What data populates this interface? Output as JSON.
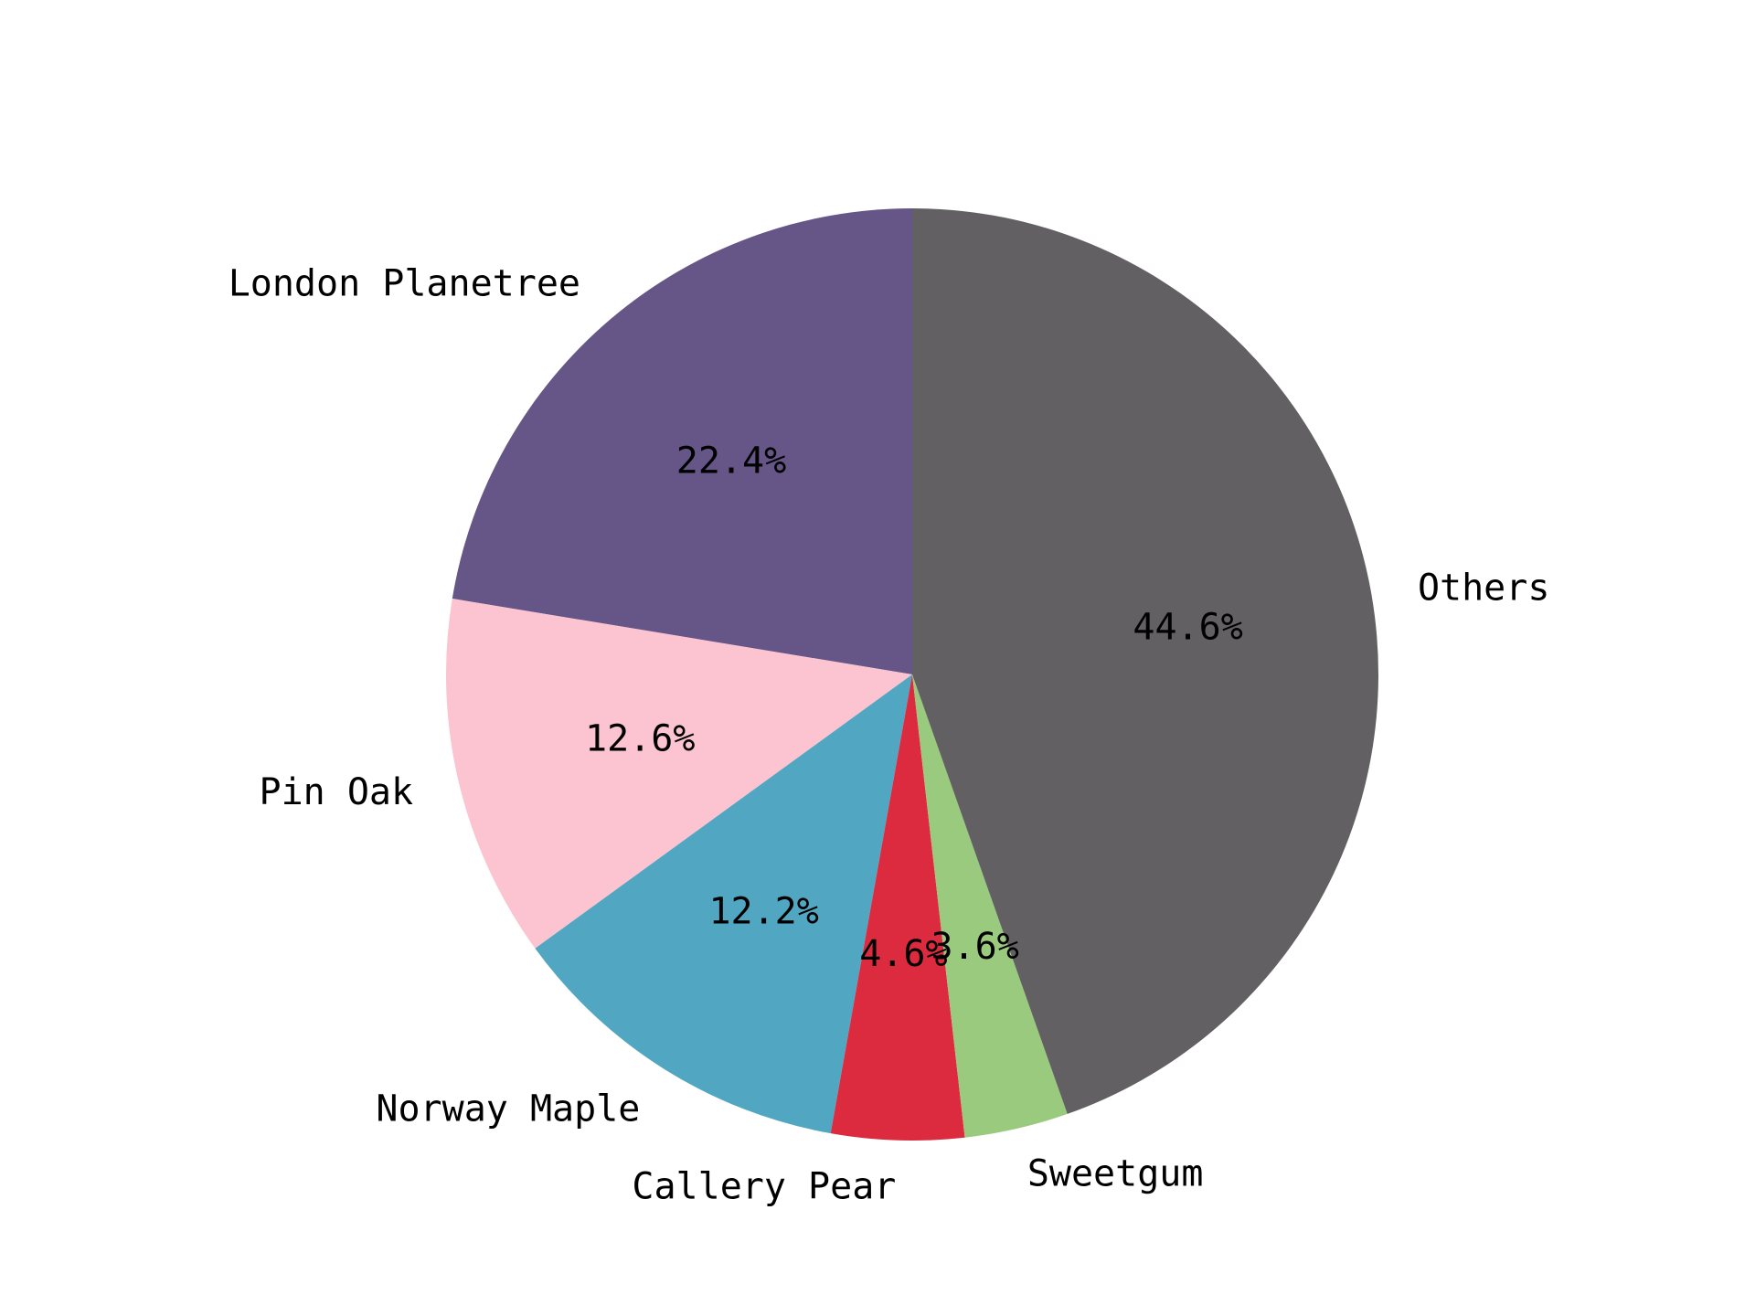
{
  "chart_data": {
    "type": "pie",
    "title": "",
    "start_angle_deg": 90,
    "direction": "counterclockwise",
    "slices": [
      {
        "label": "London Planetree",
        "value": 22.4,
        "pct_label": "22.4%",
        "color": "#665687"
      },
      {
        "label": "Pin Oak",
        "value": 12.6,
        "pct_label": "12.6%",
        "color": "#fcc3d1"
      },
      {
        "label": "Norway Maple",
        "value": 12.2,
        "pct_label": "12.2%",
        "color": "#51a7c2"
      },
      {
        "label": "Callery Pear",
        "value": 4.6,
        "pct_label": "4.6%",
        "color": "#dc2b3e"
      },
      {
        "label": "Sweetgum",
        "value": 3.6,
        "pct_label": "3.6%",
        "color": "#9aca7e"
      },
      {
        "label": "Others",
        "value": 44.6,
        "pct_label": "44.6%",
        "color": "#626063"
      }
    ]
  }
}
